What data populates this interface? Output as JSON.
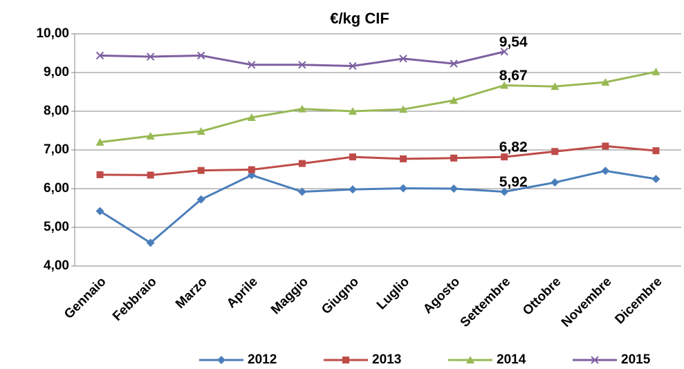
{
  "chart_data": {
    "type": "line",
    "title": "€/kg CIF",
    "categories": [
      "Gennaio",
      "Febbraio",
      "Marzo",
      "Aprile",
      "Maggio",
      "Giugno",
      "Luglio",
      "Agosto",
      "Settembre",
      "Ottobre",
      "Novembre",
      "Dicembre"
    ],
    "series": [
      {
        "name": "2012",
        "color": "#4a7ebb",
        "marker": "diamond",
        "values": [
          5.42,
          4.6,
          5.72,
          6.35,
          5.92,
          5.98,
          6.01,
          6.0,
          5.92,
          6.16,
          6.46,
          6.25
        ],
        "value_labels": [
          null,
          null,
          null,
          null,
          null,
          null,
          null,
          null,
          "5,92",
          null,
          null,
          null
        ]
      },
      {
        "name": "2013",
        "color": "#be4b48",
        "marker": "square",
        "values": [
          6.36,
          6.35,
          6.47,
          6.49,
          6.65,
          6.82,
          6.77,
          6.79,
          6.82,
          6.96,
          7.1,
          6.98
        ],
        "value_labels": [
          null,
          null,
          null,
          null,
          null,
          null,
          null,
          null,
          "6,82",
          null,
          null,
          null
        ]
      },
      {
        "name": "2014",
        "color": "#98b954",
        "marker": "triangle",
        "values": [
          7.2,
          7.36,
          7.48,
          7.84,
          8.06,
          8.0,
          8.05,
          8.28,
          8.67,
          8.64,
          8.75,
          9.02
        ],
        "value_labels": [
          null,
          null,
          null,
          null,
          null,
          null,
          null,
          null,
          "8,67",
          null,
          null,
          null
        ]
      },
      {
        "name": "2015",
        "color": "#7d60a0",
        "marker": "x",
        "values": [
          9.44,
          9.41,
          9.44,
          9.2,
          9.2,
          9.17,
          9.36,
          9.23,
          9.54,
          null,
          null,
          null
        ],
        "value_labels": [
          null,
          null,
          null,
          null,
          null,
          null,
          null,
          null,
          "9,54",
          null,
          null,
          null
        ]
      }
    ],
    "ylim": [
      4,
      10
    ],
    "yticks": [
      {
        "value": 4,
        "label": "4,00"
      },
      {
        "value": 5,
        "label": "5,00"
      },
      {
        "value": 6,
        "label": "6,00"
      },
      {
        "value": 7,
        "label": "7,00"
      },
      {
        "value": 8,
        "label": "8,00"
      },
      {
        "value": 9,
        "label": "9,00"
      },
      {
        "value": 10,
        "label": "10,00"
      }
    ],
    "grid": true,
    "legend": "bottom"
  }
}
